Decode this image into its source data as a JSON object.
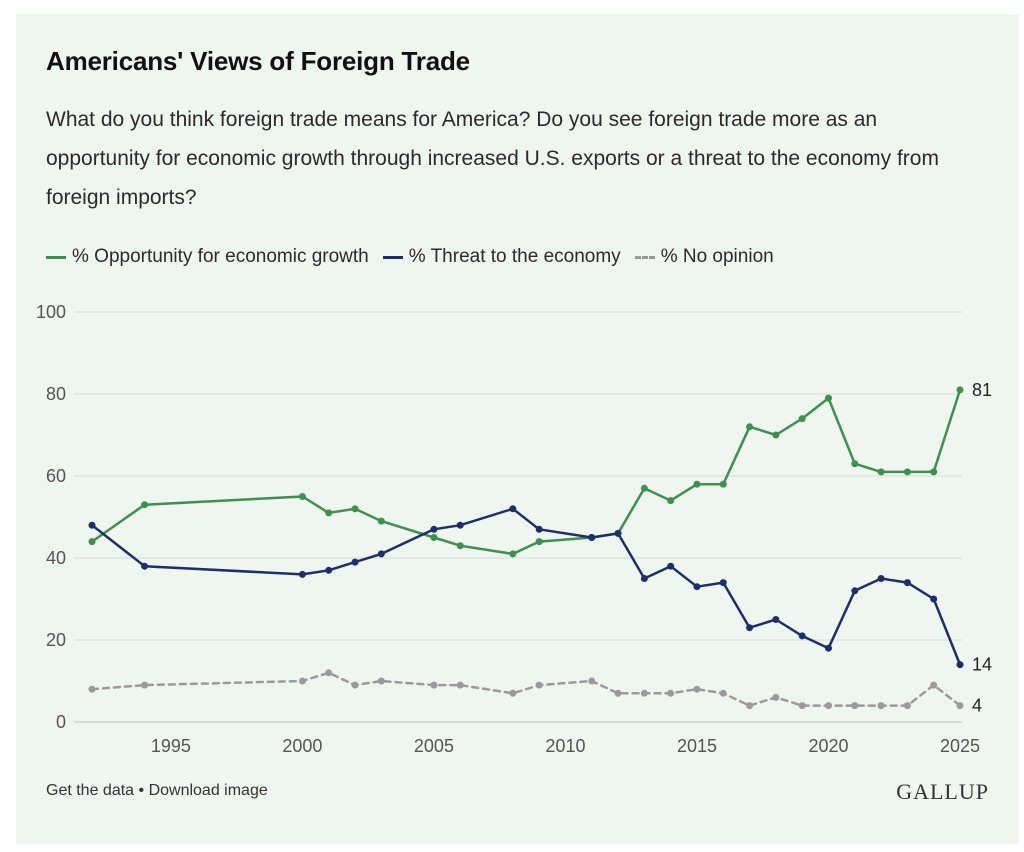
{
  "header": {
    "title": "Americans' Views of Foreign Trade",
    "question": "What do you think foreign trade means for America? Do you see foreign trade more as an opportunity for economic growth through increased U.S. exports or a threat to the economy from foreign imports?"
  },
  "legend": {
    "opportunity": "% Opportunity for economic growth",
    "threat": "% Threat to the economy",
    "no_opinion": "% No opinion"
  },
  "footer": {
    "get_data": "Get the data",
    "separator": " • ",
    "download": "Download image"
  },
  "logo": "GALLUP",
  "colors": {
    "background": "#eff5ef",
    "opportunity": "#3f8f4f",
    "threat": "#1c2f6b",
    "no_opinion": "#9a9a9a",
    "grid": "#d6ddd6"
  },
  "chart_data": {
    "type": "line",
    "title": "Americans' Views of Foreign Trade",
    "xlabel": "",
    "ylabel": "",
    "xlim": [
      1992,
      2025
    ],
    "ylim": [
      0,
      100
    ],
    "yticks": [
      0,
      20,
      40,
      60,
      80,
      100
    ],
    "xticks": [
      1995,
      2000,
      2005,
      2010,
      2015,
      2020,
      2025
    ],
    "grid": true,
    "legend_position": "top-left",
    "series": [
      {
        "name": "% Opportunity for economic growth",
        "key": "opportunity",
        "style": "solid",
        "x": [
          1992,
          1994,
          2000,
          2001,
          2002,
          2003,
          2005,
          2006,
          2008,
          2009,
          2011,
          2012,
          2013,
          2014,
          2015,
          2016,
          2017,
          2018,
          2019,
          2020,
          2021,
          2022,
          2023,
          2024,
          2025
        ],
        "values": [
          44,
          53,
          55,
          51,
          52,
          49,
          45,
          43,
          41,
          44,
          45,
          46,
          57,
          54,
          58,
          58,
          72,
          70,
          74,
          79,
          63,
          61,
          61,
          61,
          81
        ],
        "end_label": "81"
      },
      {
        "name": "% Threat to the economy",
        "key": "threat",
        "style": "solid",
        "x": [
          1992,
          1994,
          2000,
          2001,
          2002,
          2003,
          2005,
          2006,
          2008,
          2009,
          2011,
          2012,
          2013,
          2014,
          2015,
          2016,
          2017,
          2018,
          2019,
          2020,
          2021,
          2022,
          2023,
          2024,
          2025
        ],
        "values": [
          48,
          38,
          36,
          37,
          39,
          41,
          47,
          48,
          52,
          47,
          45,
          46,
          35,
          38,
          33,
          34,
          23,
          25,
          21,
          18,
          32,
          35,
          34,
          30,
          14
        ],
        "end_label": "14"
      },
      {
        "name": "% No opinion",
        "key": "no_opinion",
        "style": "dashed",
        "x": [
          1992,
          1994,
          2000,
          2001,
          2002,
          2003,
          2005,
          2006,
          2008,
          2009,
          2011,
          2012,
          2013,
          2014,
          2015,
          2016,
          2017,
          2018,
          2019,
          2020,
          2021,
          2022,
          2023,
          2024,
          2025
        ],
        "values": [
          8,
          9,
          10,
          12,
          9,
          10,
          9,
          9,
          7,
          9,
          10,
          7,
          7,
          7,
          8,
          7,
          4,
          6,
          4,
          4,
          4,
          4,
          4,
          9,
          4
        ],
        "end_label": "4"
      }
    ]
  }
}
